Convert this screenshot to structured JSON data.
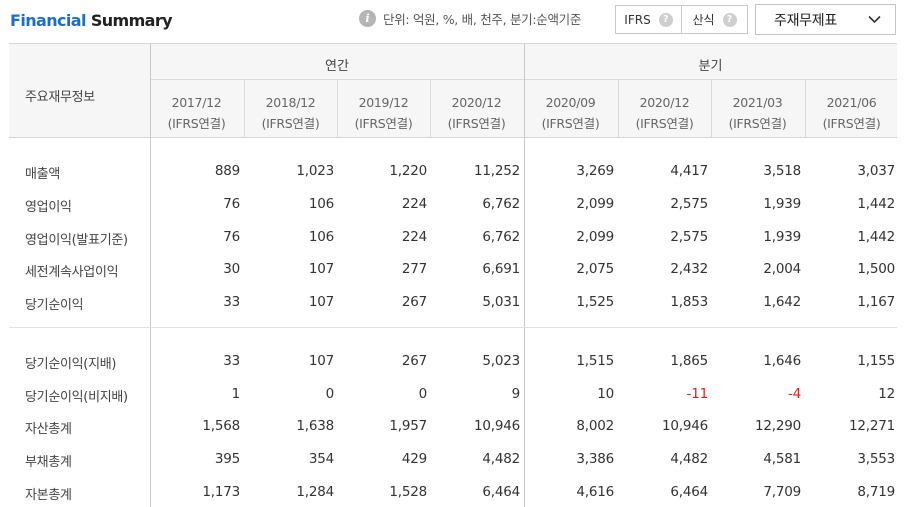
{
  "header": {
    "title_blue": "Financial",
    "title_rest": " Summary",
    "unit_text": "단위: 억원, %, 배, 천주, 분기:순액기준",
    "toggle_ifrs": "IFRS",
    "toggle_calc": "산식",
    "select_value": "주재무제표"
  },
  "table": {
    "row_header": "주요재무정보",
    "group_annual": "연간",
    "group_quarter": "분기",
    "periods": [
      {
        "date": "2017/12",
        "basis": "(IFRS연결)"
      },
      {
        "date": "2018/12",
        "basis": "(IFRS연결)"
      },
      {
        "date": "2019/12",
        "basis": "(IFRS연결)"
      },
      {
        "date": "2020/12",
        "basis": "(IFRS연결)"
      },
      {
        "date": "2020/09",
        "basis": "(IFRS연결)"
      },
      {
        "date": "2020/12",
        "basis": "(IFRS연결)"
      },
      {
        "date": "2021/03",
        "basis": "(IFRS연결)"
      },
      {
        "date": "2021/06",
        "basis": "(IFRS연결)"
      }
    ],
    "rows": [
      {
        "label": "매출액",
        "values": [
          "889",
          "1,023",
          "1,220",
          "11,252",
          "3,269",
          "4,417",
          "3,518",
          "3,037"
        ]
      },
      {
        "label": "영업이익",
        "values": [
          "76",
          "106",
          "224",
          "6,762",
          "2,099",
          "2,575",
          "1,939",
          "1,442"
        ]
      },
      {
        "label": "영업이익(발표기준)",
        "values": [
          "76",
          "106",
          "224",
          "6,762",
          "2,099",
          "2,575",
          "1,939",
          "1,442"
        ]
      },
      {
        "label": "세전계속사업이익",
        "values": [
          "30",
          "107",
          "277",
          "6,691",
          "2,075",
          "2,432",
          "2,004",
          "1,500"
        ]
      },
      {
        "label": "당기순이익",
        "values": [
          "33",
          "107",
          "267",
          "5,031",
          "1,525",
          "1,853",
          "1,642",
          "1,167"
        ]
      },
      {
        "label": "당기순이익(지배)",
        "values": [
          "33",
          "107",
          "267",
          "5,023",
          "1,515",
          "1,865",
          "1,646",
          "1,155"
        ]
      },
      {
        "label": "당기순이익(비지배)",
        "values": [
          "1",
          "0",
          "0",
          "9",
          "10",
          "-11",
          "-4",
          "12"
        ]
      },
      {
        "label": "자산총계",
        "values": [
          "1,568",
          "1,638",
          "1,957",
          "10,946",
          "8,002",
          "10,946",
          "12,290",
          "12,271"
        ]
      },
      {
        "label": "부채총계",
        "values": [
          "395",
          "354",
          "429",
          "4,482",
          "3,386",
          "4,482",
          "4,581",
          "3,553"
        ]
      },
      {
        "label": "자본총계",
        "values": [
          "1,173",
          "1,284",
          "1,528",
          "6,464",
          "4,616",
          "6,464",
          "7,709",
          "8,719"
        ]
      }
    ]
  },
  "colors": {
    "accent": "#1d6ec8",
    "negative": "#e02020"
  },
  "icons": {
    "info": "info-icon",
    "help": "question-icon",
    "dropdown": "chevron-down-icon"
  }
}
